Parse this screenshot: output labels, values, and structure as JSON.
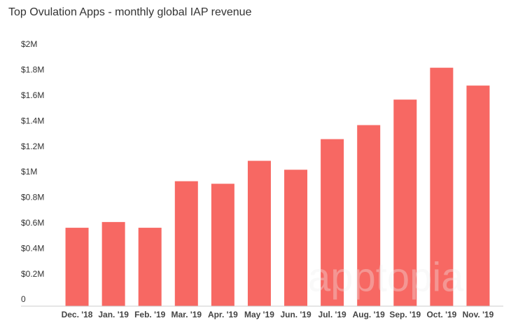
{
  "chart_data": {
    "type": "bar",
    "title": "Top Ovulation Apps - monthly global IAP revenue",
    "watermark": "apptopia",
    "categories": [
      "Dec. '18",
      "Jan. '19",
      "Feb. '19",
      "Mar. '19",
      "Apr. '19",
      "May '19",
      "Jun. '19",
      "Jul. '19",
      "Aug. '19",
      "Sep. '19",
      "Oct. '19",
      "Nov. '19"
    ],
    "values": [
      615000,
      660000,
      615000,
      980000,
      960000,
      1140000,
      1070000,
      1310000,
      1420000,
      1620000,
      1870000,
      1730000
    ],
    "color": "#f76863",
    "ylim": [
      0,
      2000000
    ],
    "yticks": [
      0,
      {
        "value": 200000,
        "label": "$0.2M"
      },
      {
        "value": 400000,
        "label": "$0.4M"
      },
      {
        "value": 600000,
        "label": "$0.6M"
      },
      {
        "value": 800000,
        "label": "$0.8M"
      },
      {
        "value": 1000000,
        "label": "$1M"
      },
      {
        "value": 1200000,
        "label": "$1.2M"
      },
      {
        "value": 1400000,
        "label": "$1.4M"
      },
      {
        "value": 1600000,
        "label": "$1.6M"
      },
      {
        "value": 1800000,
        "label": "$1.8M"
      },
      {
        "value": 2000000,
        "label": "$2M"
      }
    ],
    "grid": false
  }
}
